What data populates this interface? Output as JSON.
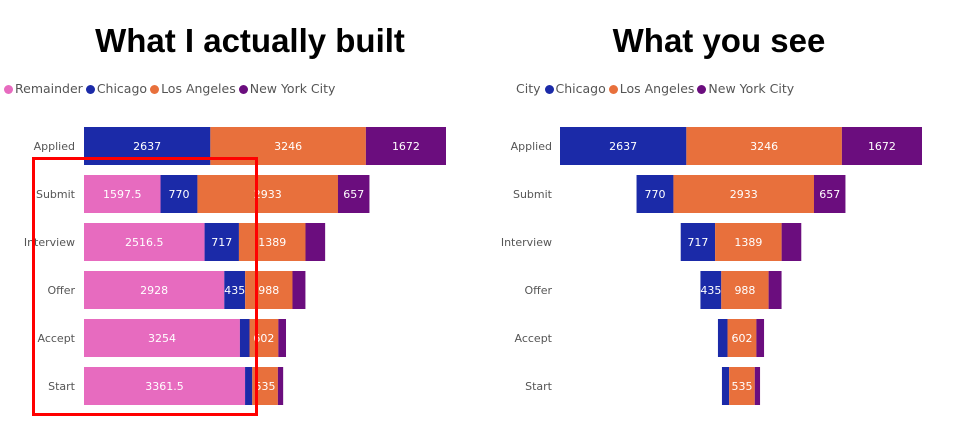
{
  "headings": {
    "left": "What I actually built",
    "right": "What you see"
  },
  "colors": {
    "Remainder": "#e76bbf",
    "Chicago": "#1b2aa8",
    "Los Angeles": "#e8703c",
    "New York City": "#6b0d7e"
  },
  "chart_data": [
    {
      "type": "bar",
      "orientation": "horizontal-stacked",
      "title": "What I actually built",
      "legend": {
        "title": "",
        "placement": "top-left",
        "entries": [
          "Remainder",
          "Chicago",
          "Los Angeles",
          "New York City"
        ]
      },
      "categories": [
        "Applied",
        "Submit",
        "Interview",
        "Offer",
        "Accept",
        "Start"
      ],
      "series": [
        {
          "name": "Remainder",
          "values": [
            0,
            1597.5,
            2516.5,
            2928,
            3254,
            3361.5
          ],
          "labels": [
            "",
            "1597.5",
            "2516.5",
            "2928",
            "3254",
            "3361.5"
          ]
        },
        {
          "name": "Chicago",
          "values": [
            2637,
            770,
            717,
            435,
            200,
            150
          ],
          "labels": [
            "2637",
            "770",
            "717",
            "435",
            "",
            ""
          ]
        },
        {
          "name": "Los Angeles",
          "values": [
            3246,
            2933,
            1389,
            988,
            602,
            535
          ],
          "labels": [
            "3246",
            "2933",
            "1389",
            "988",
            "602",
            "535"
          ]
        },
        {
          "name": "New York City",
          "values": [
            1672,
            657,
            410,
            270,
            160,
            110
          ],
          "labels": [
            "1672",
            "657",
            "",
            "",
            "",
            ""
          ]
        }
      ],
      "grid": false
    },
    {
      "type": "bar",
      "orientation": "funnel",
      "title": "What you see",
      "legend": {
        "title": "City",
        "placement": "top-left",
        "entries": [
          "Chicago",
          "Los Angeles",
          "New York City"
        ]
      },
      "categories": [
        "Applied",
        "Submit",
        "Interview",
        "Offer",
        "Accept",
        "Start"
      ],
      "series": [
        {
          "name": "Chicago",
          "values": [
            2637,
            770,
            717,
            435,
            200,
            150
          ],
          "labels": [
            "2637",
            "770",
            "717",
            "435",
            "",
            ""
          ]
        },
        {
          "name": "Los Angeles",
          "values": [
            3246,
            2933,
            1389,
            988,
            602,
            535
          ],
          "labels": [
            "3246",
            "2933",
            "1389",
            "988",
            "602",
            "535"
          ]
        },
        {
          "name": "New York City",
          "values": [
            1672,
            657,
            410,
            270,
            160,
            110
          ],
          "labels": [
            "1672",
            "657",
            "",
            "",
            "",
            ""
          ]
        }
      ],
      "grid": false
    }
  ]
}
